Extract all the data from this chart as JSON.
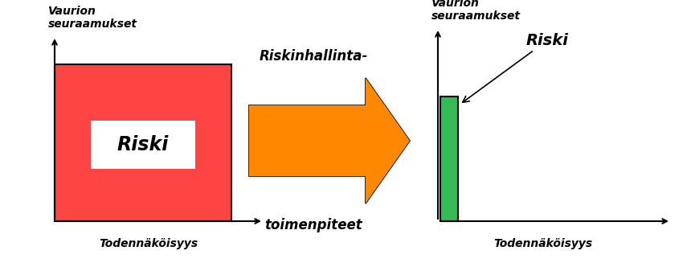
{
  "bg_color": "#ffffff",
  "left_rect_color": "#FF4444",
  "left_rect_label": "Riski",
  "left_axis_label": "Vaurion\nseuraamukset",
  "left_x_label": "Todennäköisyys",
  "right_rect_color": "#33BB55",
  "right_rect_label": "Riski",
  "right_axis_label": "Vaurion\nseuraamukset",
  "right_x_label": "Todennäköisyys",
  "arrow_label_line1": "Riskinhallinta-",
  "arrow_label_line2": "toimenpiteet",
  "arrow_fill_color": "#FFCC88",
  "arrow_stripe_color": "#FF8800",
  "arrow_edge_color": "#000000"
}
